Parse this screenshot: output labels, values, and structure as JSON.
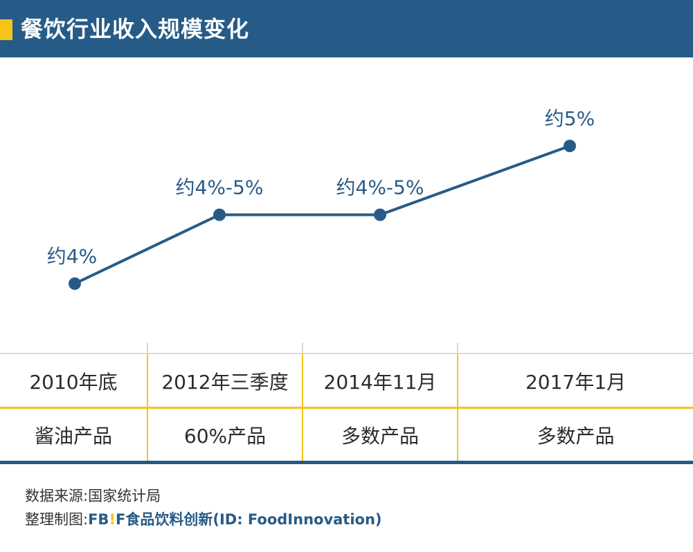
{
  "header": {
    "title": "餐饮行业收入规模变化"
  },
  "chart_data": {
    "type": "line",
    "categories": [
      "2010年底",
      "2012年三季度",
      "2014年11月",
      "2017年1月"
    ],
    "values": [
      4,
      4.5,
      4.5,
      5
    ],
    "point_labels": [
      "约4%",
      "约4%-5%",
      "约4%-5%",
      "约5%"
    ],
    "colors": {
      "line": "#275b87",
      "point": "#275b87",
      "label": "#2a5a84"
    }
  },
  "table": {
    "dates": [
      "2010年底",
      "2012年三季度",
      "2014年11月",
      "2017年1月"
    ],
    "products": [
      "酱油产品",
      "60%产品",
      "多数产品",
      "多数产品"
    ]
  },
  "footer": {
    "source_line": "数据来源:国家统计局",
    "credit_prefix": "整理制图:",
    "brand_fb": "FB",
    "brand_bang": "!",
    "brand_f": "F",
    "credit_rest": "食品饮料创新(ID: FoodInnovation)"
  },
  "colors": {
    "header_bg": "#275b87",
    "accent": "#f5c417",
    "grid": "#d8d8d8"
  }
}
